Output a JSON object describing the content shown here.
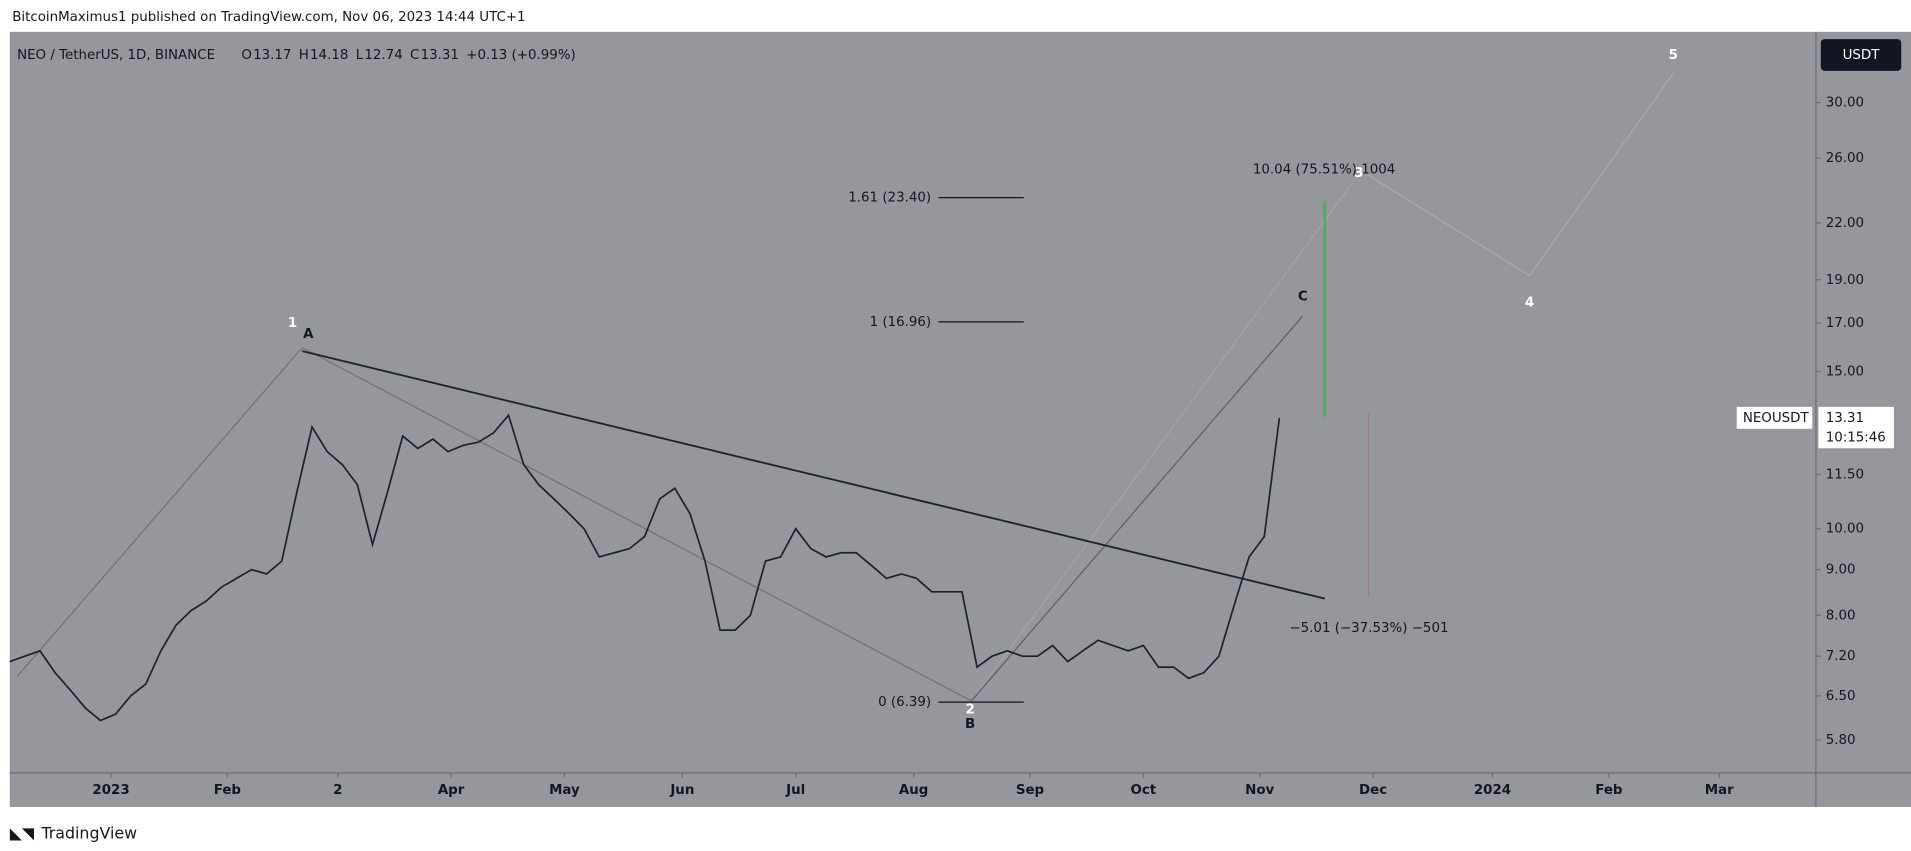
{
  "header": {
    "publisher": "BitcoinMaximus1 published on TradingView.com, Nov 06, 2023 14:44 UTC+1"
  },
  "legend": {
    "symbol": "NEO / TetherUS, 1D, BINANCE",
    "items": [
      "O",
      "13.17",
      "H",
      "14.18",
      "L",
      "12.74",
      "C",
      "13.31",
      "+0.13 (+0.99%)"
    ]
  },
  "chart_data": {
    "type": "line",
    "color": "#1e222d",
    "log_scale": true,
    "categories": [
      null,
      null,
      null,
      null,
      null,
      null,
      null,
      null,
      null,
      null,
      null,
      null,
      null,
      null,
      null,
      null,
      null,
      null,
      null,
      null,
      null,
      null,
      null,
      null,
      null,
      null,
      null,
      null,
      null,
      null,
      null,
      null,
      null,
      null,
      null,
      null,
      null,
      null,
      null,
      null,
      null,
      null,
      null,
      null,
      null,
      null,
      null,
      null,
      null,
      null,
      null,
      null,
      null,
      null,
      null,
      null,
      null,
      null,
      null,
      null,
      null,
      null,
      null,
      null,
      null,
      null,
      null,
      null,
      null,
      null,
      null,
      null,
      null,
      null,
      null,
      null,
      null,
      null,
      null,
      null,
      null,
      null,
      null,
      null,
      null
    ],
    "values": [
      7.1,
      7.2,
      7.3,
      6.9,
      6.6,
      6.3,
      6.1,
      6.2,
      6.5,
      6.7,
      7.3,
      7.8,
      8.1,
      8.3,
      8.6,
      8.8,
      9.0,
      8.9,
      9.2,
      11.0,
      13.0,
      12.2,
      11.8,
      11.2,
      9.6,
      11.0,
      12.7,
      12.3,
      12.6,
      12.2,
      12.4,
      12.5,
      12.8,
      13.4,
      11.8,
      11.2,
      10.8,
      10.4,
      10.0,
      9.3,
      9.4,
      9.5,
      9.8,
      10.8,
      11.1,
      10.4,
      9.2,
      7.7,
      7.7,
      8.0,
      9.2,
      9.3,
      10.0,
      9.5,
      9.3,
      9.4,
      9.4,
      9.1,
      8.8,
      8.9,
      8.8,
      8.5,
      8.5,
      8.5,
      7.0,
      7.2,
      7.3,
      7.2,
      7.2,
      7.4,
      7.1,
      7.3,
      7.5,
      7.4,
      7.3,
      7.4,
      7.0,
      7.0,
      6.8,
      6.9,
      7.2,
      8.2,
      9.3,
      9.8,
      13.31
    ],
    "xlim": [
      0,
      119.5
    ],
    "xticks": [
      {
        "value": 6.7,
        "label": "2023"
      },
      {
        "value": 14.4,
        "label": "Feb"
      },
      {
        "value": 21.7,
        "label": "2"
      },
      {
        "value": 29.2,
        "label": "Apr"
      },
      {
        "value": 36.7,
        "label": "May"
      },
      {
        "value": 44.5,
        "label": "Jun"
      },
      {
        "value": 52.0,
        "label": "Jul"
      },
      {
        "value": 59.8,
        "label": "Aug"
      },
      {
        "value": 67.5,
        "label": "Sep"
      },
      {
        "value": 75.0,
        "label": "Oct"
      },
      {
        "value": 82.7,
        "label": "Nov"
      },
      {
        "value": 90.2,
        "label": "Dec"
      },
      {
        "value": 98.1,
        "label": "2024"
      },
      {
        "value": 105.8,
        "label": "Feb"
      },
      {
        "value": 113.1,
        "label": "Mar"
      }
    ],
    "ylim": [
      5.33,
      36.0
    ],
    "yticks": [
      {
        "value": 30,
        "label": "30.00"
      },
      {
        "value": 26,
        "label": "26.00"
      },
      {
        "value": 22,
        "label": "22.00"
      },
      {
        "value": 19,
        "label": "19.00"
      },
      {
        "value": 17,
        "label": "17.00"
      },
      {
        "value": 15,
        "label": "15.00"
      },
      {
        "value": 11.5,
        "label": "11.50"
      },
      {
        "value": 10,
        "label": "10.00"
      },
      {
        "value": 9,
        "label": "9.00"
      },
      {
        "value": 8,
        "label": "8.00"
      },
      {
        "value": 7.2,
        "label": "7.20"
      },
      {
        "value": 6.5,
        "label": "6.50"
      },
      {
        "value": 5.8,
        "label": "5.80"
      }
    ],
    "currency": "USDT",
    "symbol_tag": "NEOUSDT",
    "last_price": 13.31,
    "countdown": "10:15:46",
    "wave_labels": [
      "1",
      "A",
      "2",
      "B",
      "C",
      "3",
      "4",
      "5"
    ],
    "fib_levels": [
      "1.61 (23.40)",
      "1 (16.96)",
      "0 (6.39)"
    ],
    "measures": [
      "10.04 (75.51%) 1004",
      "−5.01 (−37.53%) −501"
    ]
  },
  "footer": {
    "brand": "TradingView"
  }
}
